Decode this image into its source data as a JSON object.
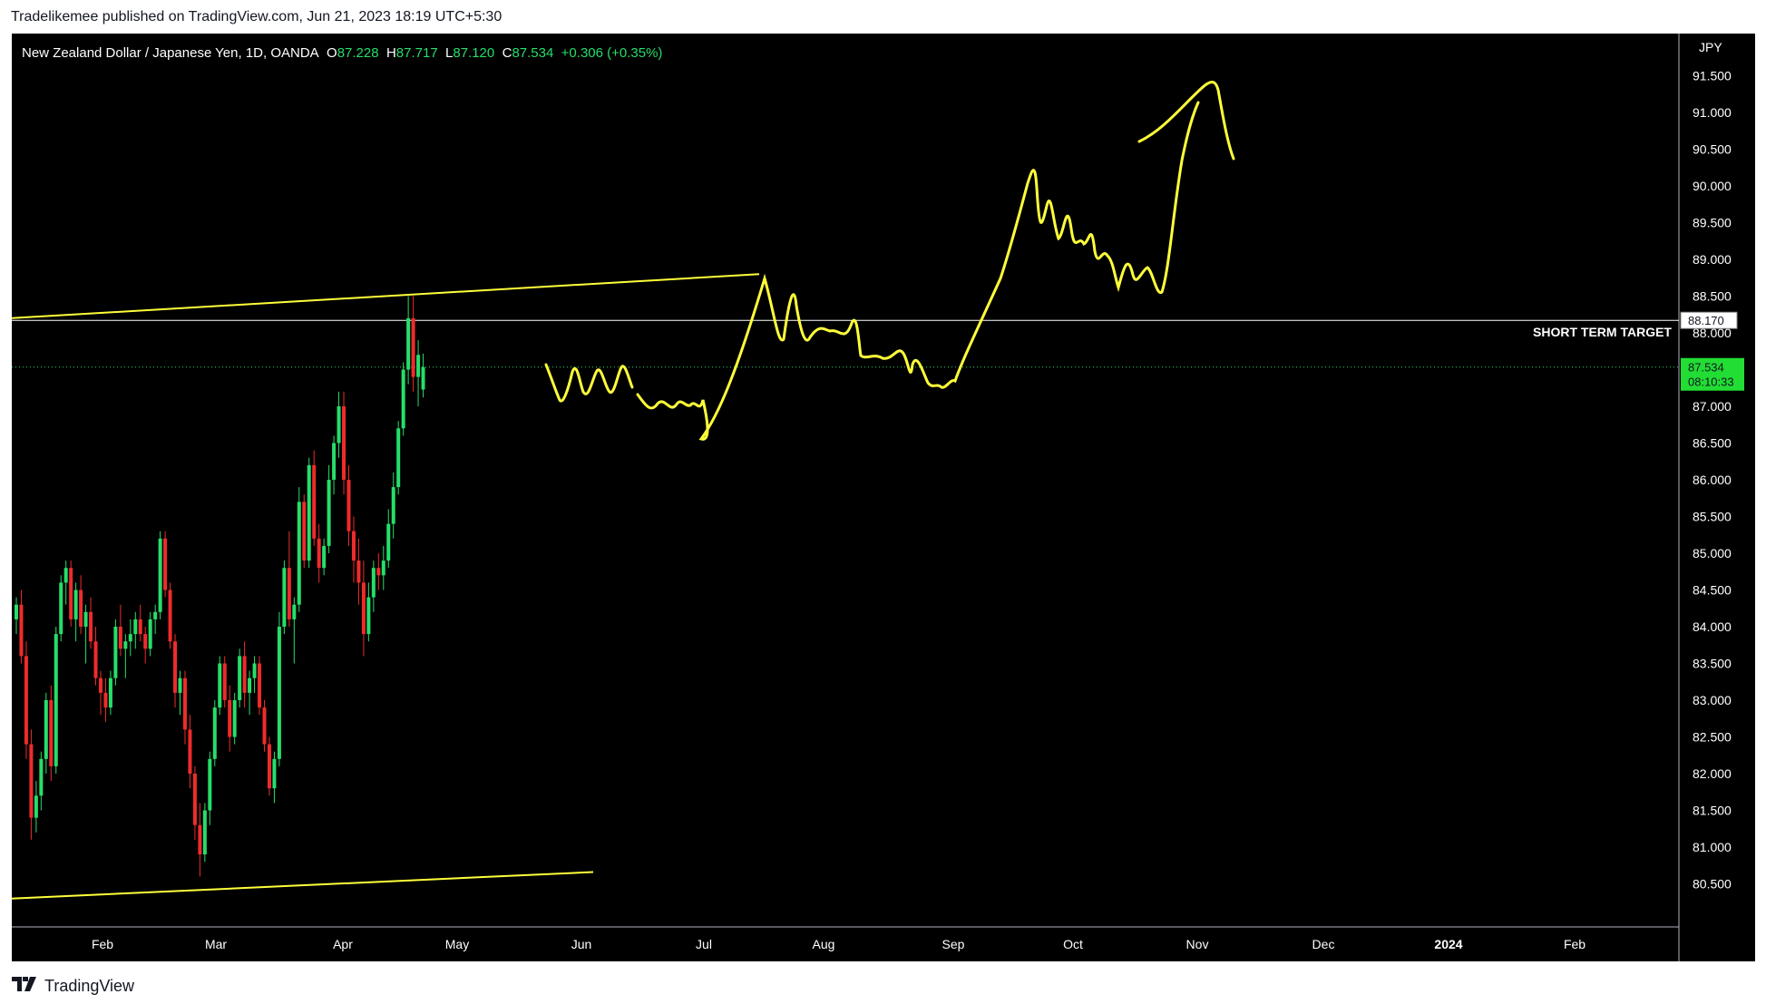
{
  "header": {
    "published_line": "Tradelikemee published on TradingView.com, Jun 21, 2023 18:19 UTC+5:30"
  },
  "footer": {
    "brand": "TradingView"
  },
  "legend": {
    "symbol": "New Zealand Dollar / Japanese Yen, 1D, OANDA",
    "o_label": "O",
    "o_value": "87.228",
    "h_label": "H",
    "h_value": "87.717",
    "l_label": "L",
    "l_value": "87.120",
    "c_label": "C",
    "c_value": "87.534",
    "change": "+0.306 (+0.35%)"
  },
  "colors": {
    "background": "#000000",
    "up": "#26de6a",
    "down": "#ef2b2b",
    "drawing": "#ffff3a",
    "line": "#ffffff",
    "price_badge": "#22dd33"
  },
  "chart_data": {
    "type": "candlestick",
    "currency": "JPY",
    "x_labels": [
      "Feb",
      "Mar",
      "Apr",
      "May",
      "Jun",
      "Jul",
      "Aug",
      "Sep",
      "Oct",
      "Nov",
      "Dec",
      "2024",
      "Feb"
    ],
    "y_ticks": [
      "91.500",
      "91.000",
      "90.500",
      "90.000",
      "89.500",
      "89.000",
      "88.500",
      "88.000",
      "87.000",
      "86.500",
      "86.000",
      "85.500",
      "85.000",
      "84.500",
      "84.000",
      "83.500",
      "83.000",
      "82.500",
      "82.000",
      "81.500",
      "81.000",
      "80.500"
    ],
    "ylim": [
      80.0,
      92.0
    ],
    "last_price": "87.534",
    "countdown": "08:10:33",
    "horizontal_line": {
      "price": "88.170",
      "label": "SHORT TERM TARGET"
    },
    "candles": [
      [
        84.1,
        84.4,
        83.9,
        84.3
      ],
      [
        84.3,
        84.5,
        83.5,
        83.6
      ],
      [
        83.6,
        83.8,
        82.2,
        82.4
      ],
      [
        82.4,
        82.6,
        81.1,
        81.4
      ],
      [
        81.4,
        81.9,
        81.2,
        81.7
      ],
      [
        81.7,
        82.3,
        81.5,
        82.2
      ],
      [
        82.2,
        83.1,
        82.0,
        83.0
      ],
      [
        83.0,
        83.2,
        81.9,
        82.1
      ],
      [
        82.1,
        84.0,
        82.0,
        83.9
      ],
      [
        83.9,
        84.7,
        83.8,
        84.6
      ],
      [
        84.6,
        84.9,
        84.3,
        84.8
      ],
      [
        84.8,
        84.9,
        84.0,
        84.1
      ],
      [
        84.1,
        84.6,
        83.8,
        84.5
      ],
      [
        84.5,
        84.7,
        83.9,
        84.0
      ],
      [
        84.0,
        84.3,
        83.5,
        84.2
      ],
      [
        84.2,
        84.4,
        83.7,
        83.8
      ],
      [
        83.8,
        84.0,
        83.2,
        83.3
      ],
      [
        83.3,
        83.4,
        82.8,
        83.1
      ],
      [
        83.1,
        83.3,
        82.7,
        82.9
      ],
      [
        82.9,
        83.4,
        82.8,
        83.3
      ],
      [
        83.3,
        84.1,
        83.2,
        84.0
      ],
      [
        84.0,
        84.3,
        83.6,
        83.7
      ],
      [
        83.7,
        83.9,
        83.3,
        83.8
      ],
      [
        83.8,
        84.1,
        83.6,
        83.9
      ],
      [
        83.9,
        84.2,
        83.7,
        84.1
      ],
      [
        84.1,
        84.3,
        83.8,
        83.9
      ],
      [
        83.9,
        84.0,
        83.5,
        83.7
      ],
      [
        83.7,
        84.2,
        83.6,
        84.1
      ],
      [
        84.1,
        84.3,
        83.9,
        84.2
      ],
      [
        84.2,
        85.3,
        84.1,
        85.2
      ],
      [
        85.2,
        85.3,
        84.4,
        84.5
      ],
      [
        84.5,
        84.6,
        83.7,
        83.8
      ],
      [
        83.8,
        83.9,
        82.9,
        83.1
      ],
      [
        83.1,
        83.4,
        82.8,
        83.3
      ],
      [
        83.3,
        83.4,
        82.4,
        82.6
      ],
      [
        82.6,
        82.8,
        81.8,
        82.0
      ],
      [
        82.0,
        82.1,
        81.1,
        81.3
      ],
      [
        81.3,
        81.6,
        80.6,
        80.9
      ],
      [
        80.9,
        81.6,
        80.8,
        81.5
      ],
      [
        81.5,
        82.3,
        81.3,
        82.2
      ],
      [
        82.2,
        83.0,
        82.1,
        82.9
      ],
      [
        82.9,
        83.6,
        82.8,
        83.5
      ],
      [
        83.5,
        83.6,
        82.9,
        83.0
      ],
      [
        83.0,
        83.2,
        82.3,
        82.5
      ],
      [
        82.5,
        83.1,
        82.4,
        83.0
      ],
      [
        83.0,
        83.7,
        82.9,
        83.6
      ],
      [
        83.6,
        83.8,
        82.9,
        83.1
      ],
      [
        83.1,
        83.4,
        82.8,
        83.3
      ],
      [
        83.3,
        83.6,
        83.1,
        83.5
      ],
      [
        83.5,
        83.6,
        82.8,
        82.9
      ],
      [
        82.9,
        83.0,
        82.3,
        82.4
      ],
      [
        82.4,
        82.5,
        81.7,
        81.8
      ],
      [
        81.8,
        82.3,
        81.6,
        82.2
      ],
      [
        82.2,
        84.2,
        82.1,
        84.0
      ],
      [
        84.0,
        84.9,
        83.9,
        84.8
      ],
      [
        84.8,
        85.3,
        84.0,
        84.1
      ],
      [
        84.1,
        84.4,
        83.5,
        84.3
      ],
      [
        84.3,
        85.9,
        84.2,
        85.7
      ],
      [
        85.7,
        85.8,
        84.8,
        84.9
      ],
      [
        84.9,
        86.3,
        84.8,
        86.2
      ],
      [
        86.2,
        86.4,
        85.1,
        85.2
      ],
      [
        85.2,
        85.4,
        84.6,
        84.8
      ],
      [
        84.8,
        85.2,
        84.7,
        85.1
      ],
      [
        85.1,
        86.2,
        85.0,
        86.0
      ],
      [
        86.0,
        86.6,
        85.8,
        86.5
      ],
      [
        86.5,
        87.2,
        86.3,
        87.0
      ],
      [
        87.0,
        87.2,
        85.8,
        86.0
      ],
      [
        86.0,
        86.2,
        85.1,
        85.3
      ],
      [
        85.3,
        85.5,
        84.6,
        84.9
      ],
      [
        84.9,
        85.2,
        84.3,
        84.6
      ],
      [
        84.6,
        84.9,
        83.6,
        83.9
      ],
      [
        83.9,
        84.6,
        83.8,
        84.4
      ],
      [
        84.4,
        84.9,
        84.2,
        84.8
      ],
      [
        84.8,
        85.0,
        84.5,
        84.7
      ],
      [
        84.7,
        85.1,
        84.5,
        84.9
      ],
      [
        84.9,
        85.6,
        84.8,
        85.4
      ],
      [
        85.4,
        86.1,
        85.2,
        85.9
      ],
      [
        85.9,
        86.8,
        85.8,
        86.7
      ],
      [
        86.7,
        87.6,
        86.6,
        87.5
      ],
      [
        87.5,
        88.5,
        87.3,
        88.2
      ],
      [
        88.2,
        88.5,
        87.2,
        87.4
      ],
      [
        87.4,
        87.9,
        87.0,
        87.7
      ],
      [
        87.228,
        87.717,
        87.12,
        87.534
      ]
    ]
  }
}
